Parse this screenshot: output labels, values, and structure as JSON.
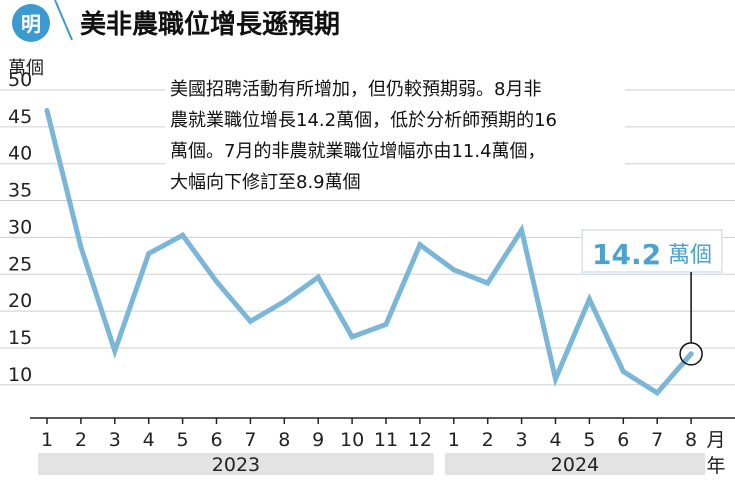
{
  "title": "美非農職位增長遜預期",
  "logo_text": "明",
  "y_unit": "萬個",
  "x_unit": "月",
  "year_unit": "年",
  "note_lines": [
    "美國招聘活動有所增加，但仍較預期弱。8月非",
    "農就業職位增長14.2萬個，低於分析師預期的16",
    "萬個。7月的非農就業職位增幅亦由11.4萬個，",
    "大幅向下修訂至8.9萬個"
  ],
  "callout": {
    "value": "14.2",
    "unit": "萬個"
  },
  "colors": {
    "line": "#7ab6d8",
    "callout": "#4aa3cf",
    "year_band": "#e3e3e3",
    "grid": "#cfcfcf"
  },
  "chart_data": {
    "type": "line",
    "title": "美非農職位增長遜預期",
    "ylabel": "萬個",
    "xlabel": "月",
    "ylim": [
      5,
      50
    ],
    "yticks": [
      10,
      15,
      20,
      25,
      30,
      35,
      40,
      45,
      50
    ],
    "categories": [
      "1",
      "2",
      "3",
      "4",
      "5",
      "6",
      "7",
      "8",
      "9",
      "10",
      "11",
      "12",
      "1",
      "2",
      "3",
      "4",
      "5",
      "6",
      "7",
      "8"
    ],
    "years": [
      {
        "label": "2023",
        "from": 0,
        "to": 11
      },
      {
        "label": "2024",
        "from": 12,
        "to": 19
      }
    ],
    "values": [
      47.2,
      28.7,
      14.6,
      27.8,
      30.3,
      24.0,
      18.6,
      21.3,
      24.6,
      16.5,
      18.2,
      29.0,
      25.6,
      23.8,
      31.0,
      10.8,
      21.6,
      11.8,
      8.9,
      14.2
    ],
    "grid": true,
    "highlight_index": 19
  }
}
